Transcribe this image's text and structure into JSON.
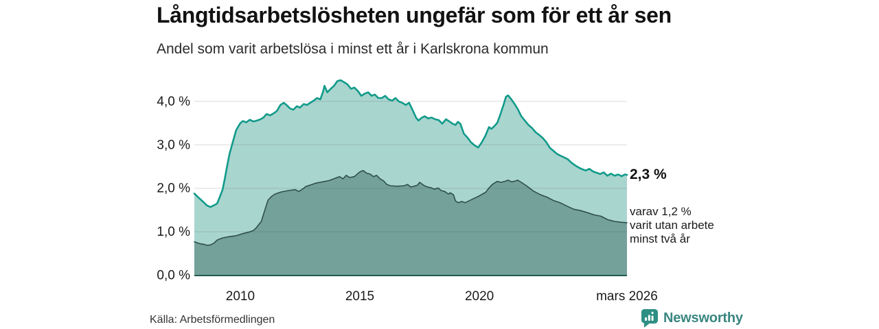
{
  "chart_data": {
    "type": "area",
    "title": "Långtidsarbetslösheten ungefär som för ett år sen",
    "subtitle": "Andel som varit arbetslösa i minst ett år i Karlskrona kommun",
    "grid": "horizontal",
    "legend": "none",
    "x_domain": [
      2008.08,
      2026.17
    ],
    "ylim": [
      0,
      4.6
    ],
    "y_ticks": [
      {
        "value": 0,
        "label": "0,0 %"
      },
      {
        "value": 1,
        "label": "1,0 %"
      },
      {
        "value": 2,
        "label": "2,0 %"
      },
      {
        "value": 3,
        "label": "3,0 %"
      },
      {
        "value": 4,
        "label": "4,0 %"
      }
    ],
    "x_ticks": [
      {
        "value": 2010,
        "label": "2010"
      },
      {
        "value": 2015,
        "label": "2015"
      },
      {
        "value": 2020,
        "label": "2020"
      },
      {
        "value": 2026.17,
        "label": "mars 2026"
      }
    ],
    "series": [
      {
        "id": "unemployed-at-least-one-year",
        "color": "#119a8a",
        "fill": "#a9d5cf",
        "end_value_pct": 2.3,
        "points": [
          [
            2008.08,
            1.87
          ],
          [
            2008.25,
            1.78
          ],
          [
            2008.45,
            1.68
          ],
          [
            2008.6,
            1.6
          ],
          [
            2008.75,
            1.56
          ],
          [
            2008.9,
            1.6
          ],
          [
            2009.03,
            1.64
          ],
          [
            2009.15,
            1.8
          ],
          [
            2009.26,
            1.96
          ],
          [
            2009.35,
            2.2
          ],
          [
            2009.45,
            2.5
          ],
          [
            2009.55,
            2.78
          ],
          [
            2009.68,
            3.04
          ],
          [
            2009.83,
            3.33
          ],
          [
            2010,
            3.49
          ],
          [
            2010.11,
            3.54
          ],
          [
            2010.25,
            3.51
          ],
          [
            2010.4,
            3.57
          ],
          [
            2010.55,
            3.53
          ],
          [
            2010.7,
            3.55
          ],
          [
            2010.85,
            3.58
          ],
          [
            2010.97,
            3.62
          ],
          [
            2011.1,
            3.7
          ],
          [
            2011.25,
            3.67
          ],
          [
            2011.4,
            3.72
          ],
          [
            2011.53,
            3.77
          ],
          [
            2011.68,
            3.91
          ],
          [
            2011.82,
            3.96
          ],
          [
            2011.93,
            3.91
          ],
          [
            2012.08,
            3.83
          ],
          [
            2012.22,
            3.8
          ],
          [
            2012.36,
            3.88
          ],
          [
            2012.5,
            3.85
          ],
          [
            2012.65,
            3.93
          ],
          [
            2012.79,
            3.91
          ],
          [
            2012.93,
            3.96
          ],
          [
            2013.07,
            4.01
          ],
          [
            2013.21,
            4.07
          ],
          [
            2013.35,
            4.04
          ],
          [
            2013.47,
            4.23
          ],
          [
            2013.52,
            4.35
          ],
          [
            2013.64,
            4.2
          ],
          [
            2013.78,
            4.28
          ],
          [
            2013.92,
            4.35
          ],
          [
            2014.06,
            4.46
          ],
          [
            2014.2,
            4.48
          ],
          [
            2014.35,
            4.43
          ],
          [
            2014.49,
            4.38
          ],
          [
            2014.63,
            4.28
          ],
          [
            2014.77,
            4.31
          ],
          [
            2014.92,
            4.23
          ],
          [
            2015.06,
            4.12
          ],
          [
            2015.2,
            4.17
          ],
          [
            2015.35,
            4.2
          ],
          [
            2015.49,
            4.12
          ],
          [
            2015.63,
            4.15
          ],
          [
            2015.77,
            4.07
          ],
          [
            2015.92,
            4.07
          ],
          [
            2016.06,
            4.12
          ],
          [
            2016.2,
            4.04
          ],
          [
            2016.35,
            4.01
          ],
          [
            2016.49,
            4.07
          ],
          [
            2016.63,
            3.99
          ],
          [
            2016.77,
            3.96
          ],
          [
            2016.92,
            3.91
          ],
          [
            2017.06,
            3.96
          ],
          [
            2017.2,
            3.8
          ],
          [
            2017.35,
            3.62
          ],
          [
            2017.45,
            3.55
          ],
          [
            2017.6,
            3.62
          ],
          [
            2017.72,
            3.65
          ],
          [
            2017.85,
            3.6
          ],
          [
            2018,
            3.62
          ],
          [
            2018.15,
            3.58
          ],
          [
            2018.3,
            3.56
          ],
          [
            2018.45,
            3.48
          ],
          [
            2018.6,
            3.58
          ],
          [
            2018.72,
            3.54
          ],
          [
            2018.88,
            3.48
          ],
          [
            2019,
            3.45
          ],
          [
            2019.1,
            3.52
          ],
          [
            2019.2,
            3.48
          ],
          [
            2019.35,
            3.25
          ],
          [
            2019.5,
            3.16
          ],
          [
            2019.65,
            3.05
          ],
          [
            2019.8,
            2.98
          ],
          [
            2019.95,
            2.93
          ],
          [
            2020.1,
            3.05
          ],
          [
            2020.25,
            3.2
          ],
          [
            2020.4,
            3.4
          ],
          [
            2020.5,
            3.36
          ],
          [
            2020.62,
            3.42
          ],
          [
            2020.75,
            3.5
          ],
          [
            2020.88,
            3.7
          ],
          [
            2021,
            3.9
          ],
          [
            2021.11,
            4.1
          ],
          [
            2021.2,
            4.13
          ],
          [
            2021.32,
            4.05
          ],
          [
            2021.45,
            3.95
          ],
          [
            2021.6,
            3.82
          ],
          [
            2021.75,
            3.65
          ],
          [
            2021.9,
            3.55
          ],
          [
            2022.05,
            3.45
          ],
          [
            2022.2,
            3.38
          ],
          [
            2022.35,
            3.28
          ],
          [
            2022.5,
            3.22
          ],
          [
            2022.65,
            3.15
          ],
          [
            2022.8,
            3.05
          ],
          [
            2022.95,
            2.92
          ],
          [
            2023.1,
            2.85
          ],
          [
            2023.25,
            2.78
          ],
          [
            2023.4,
            2.74
          ],
          [
            2023.55,
            2.7
          ],
          [
            2023.7,
            2.66
          ],
          [
            2023.85,
            2.58
          ],
          [
            2024,
            2.52
          ],
          [
            2024.15,
            2.47
          ],
          [
            2024.3,
            2.43
          ],
          [
            2024.45,
            2.4
          ],
          [
            2024.6,
            2.44
          ],
          [
            2024.75,
            2.38
          ],
          [
            2024.9,
            2.35
          ],
          [
            2025.05,
            2.32
          ],
          [
            2025.2,
            2.36
          ],
          [
            2025.35,
            2.28
          ],
          [
            2025.5,
            2.33
          ],
          [
            2025.65,
            2.28
          ],
          [
            2025.8,
            2.31
          ],
          [
            2025.95,
            2.27
          ],
          [
            2026.08,
            2.31
          ],
          [
            2026.17,
            2.3
          ]
        ]
      },
      {
        "id": "unemployed-at-least-two-years",
        "color": "#2f4f49",
        "fill": "#74a19a",
        "end_value_pct": 1.2,
        "points": [
          [
            2008.08,
            0.76
          ],
          [
            2008.3,
            0.72
          ],
          [
            2008.5,
            0.7
          ],
          [
            2008.62,
            0.68
          ],
          [
            2008.75,
            0.69
          ],
          [
            2008.9,
            0.73
          ],
          [
            2009.03,
            0.8
          ],
          [
            2009.26,
            0.85
          ],
          [
            2009.55,
            0.88
          ],
          [
            2009.83,
            0.9
          ],
          [
            2010.11,
            0.95
          ],
          [
            2010.4,
            0.99
          ],
          [
            2010.55,
            1.02
          ],
          [
            2010.68,
            1.09
          ],
          [
            2010.88,
            1.23
          ],
          [
            2011.02,
            1.48
          ],
          [
            2011.16,
            1.72
          ],
          [
            2011.3,
            1.8
          ],
          [
            2011.45,
            1.86
          ],
          [
            2011.73,
            1.91
          ],
          [
            2012.02,
            1.94
          ],
          [
            2012.3,
            1.96
          ],
          [
            2012.45,
            1.92
          ],
          [
            2012.6,
            1.97
          ],
          [
            2012.73,
            2.03
          ],
          [
            2013,
            2.08
          ],
          [
            2013.15,
            2.11
          ],
          [
            2013.44,
            2.14
          ],
          [
            2013.72,
            2.17
          ],
          [
            2014,
            2.23
          ],
          [
            2014.15,
            2.26
          ],
          [
            2014.3,
            2.21
          ],
          [
            2014.43,
            2.29
          ],
          [
            2014.57,
            2.24
          ],
          [
            2014.77,
            2.26
          ],
          [
            2015,
            2.37
          ],
          [
            2015.14,
            2.4
          ],
          [
            2015.28,
            2.34
          ],
          [
            2015.43,
            2.32
          ],
          [
            2015.57,
            2.26
          ],
          [
            2015.7,
            2.29
          ],
          [
            2015.85,
            2.21
          ],
          [
            2016,
            2.16
          ],
          [
            2016.13,
            2.08
          ],
          [
            2016.28,
            2.05
          ],
          [
            2016.56,
            2.04
          ],
          [
            2016.85,
            2.05
          ],
          [
            2017,
            2.08
          ],
          [
            2017.13,
            2.02
          ],
          [
            2017.4,
            2.06
          ],
          [
            2017.5,
            2.13
          ],
          [
            2017.7,
            2.05
          ],
          [
            2017.84,
            2.02
          ],
          [
            2018,
            2
          ],
          [
            2018.12,
            1.97
          ],
          [
            2018.27,
            2
          ],
          [
            2018.4,
            1.94
          ],
          [
            2018.55,
            1.92
          ],
          [
            2018.7,
            1.86
          ],
          [
            2018.78,
            1.89
          ],
          [
            2018.92,
            1.84
          ],
          [
            2019,
            1.7
          ],
          [
            2019.12,
            1.66
          ],
          [
            2019.26,
            1.69
          ],
          [
            2019.4,
            1.66
          ],
          [
            2019.55,
            1.7
          ],
          [
            2019.7,
            1.74
          ],
          [
            2019.97,
            1.81
          ],
          [
            2020.26,
            1.9
          ],
          [
            2020.4,
            2
          ],
          [
            2020.54,
            2.08
          ],
          [
            2020.74,
            2.15
          ],
          [
            2020.9,
            2.13
          ],
          [
            2021.11,
            2.16
          ],
          [
            2021.2,
            2.18
          ],
          [
            2021.35,
            2.14
          ],
          [
            2021.5,
            2.16
          ],
          [
            2021.6,
            2.18
          ],
          [
            2021.75,
            2.13
          ],
          [
            2021.97,
            2.05
          ],
          [
            2022.25,
            1.93
          ],
          [
            2022.53,
            1.85
          ],
          [
            2022.82,
            1.79
          ],
          [
            2023.1,
            1.71
          ],
          [
            2023.38,
            1.66
          ],
          [
            2023.67,
            1.58
          ],
          [
            2023.95,
            1.51
          ],
          [
            2024.23,
            1.48
          ],
          [
            2024.52,
            1.43
          ],
          [
            2024.8,
            1.38
          ],
          [
            2025.08,
            1.35
          ],
          [
            2025.37,
            1.27
          ],
          [
            2025.65,
            1.23
          ],
          [
            2025.94,
            1.21
          ],
          [
            2026.17,
            1.2
          ]
        ]
      }
    ],
    "annotations": {
      "end_value_label": "2,3 %",
      "sub_label_lines": [
        "varav 1,2 %",
        "varit utan arbete",
        "minst två år"
      ]
    },
    "colors": {
      "line_total": "#119a8a",
      "fill_total": "#a9d5cf",
      "line_two_year": "#2f4f49",
      "fill_two_year": "#74a19a",
      "axis": "#215a50"
    }
  },
  "footer": {
    "source": "Källa: Arbetsförmedlingen",
    "brand": "Newsworthy"
  }
}
